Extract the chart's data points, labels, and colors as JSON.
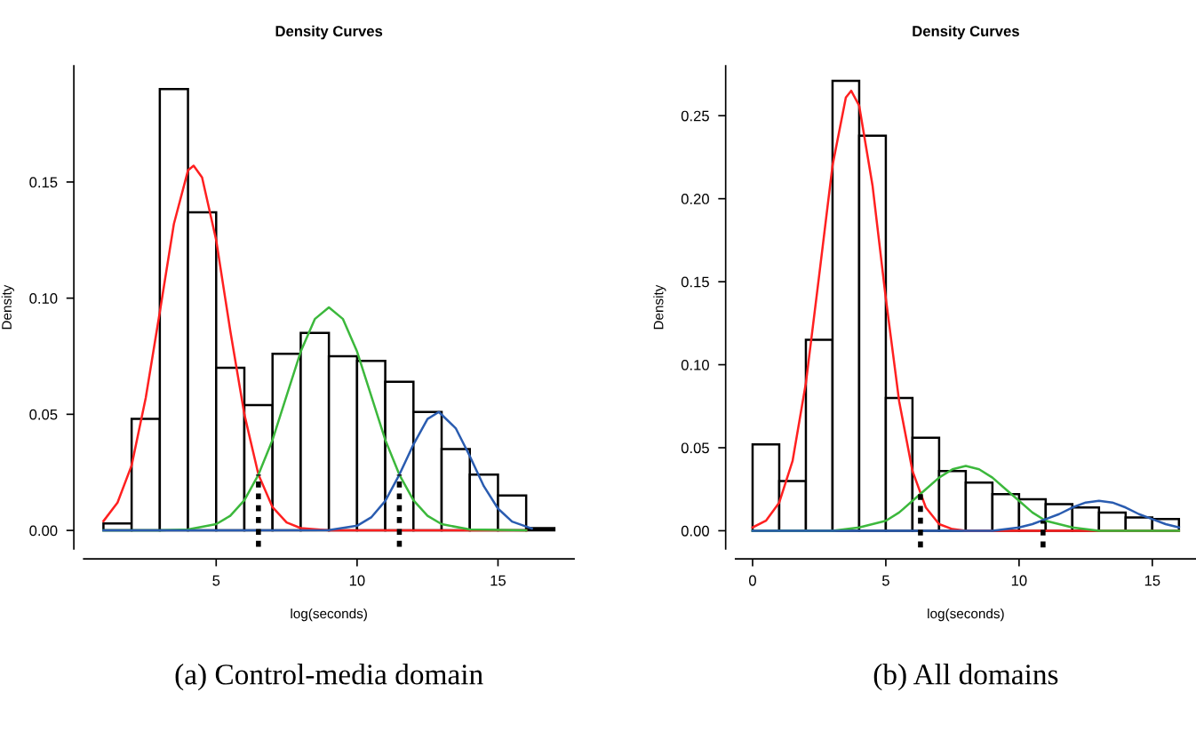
{
  "chart_data": [
    {
      "type": "histogram",
      "title": "Density Curves",
      "xlabel": "log(seconds)",
      "ylabel": "Density",
      "color": "#ffffff",
      "bins": [
        1,
        2,
        3,
        4,
        5,
        6,
        7,
        8,
        9,
        10,
        11,
        12,
        13,
        14,
        15,
        16,
        17
      ],
      "values": [
        0.003,
        0.048,
        0.19,
        0.137,
        0.07,
        0.054,
        0.076,
        0.085,
        0.075,
        0.073,
        0.064,
        0.051,
        0.035,
        0.024,
        0.015,
        0.001
      ],
      "series": [
        {
          "type": "line",
          "color": "#ff2020",
          "x": [
            1,
            1.5,
            2,
            2.5,
            3,
            3.5,
            4,
            4.2,
            4.5,
            5,
            5.5,
            6,
            6.5,
            7,
            7.5,
            8,
            9,
            16
          ],
          "values": [
            0.004,
            0.012,
            0.028,
            0.057,
            0.094,
            0.132,
            0.155,
            0.157,
            0.152,
            0.125,
            0.086,
            0.05,
            0.024,
            0.01,
            0.0034,
            0.001,
            0,
            0
          ]
        },
        {
          "type": "line",
          "color": "#3cb83c",
          "x": [
            1,
            3,
            4,
            5,
            5.5,
            6,
            6.5,
            7,
            7.5,
            8,
            8.5,
            9,
            9.5,
            10,
            10.5,
            11,
            11.5,
            12,
            12.5,
            13,
            14,
            16
          ],
          "values": [
            0,
            0,
            0.0004,
            0.0027,
            0.0063,
            0.013,
            0.024,
            0.039,
            0.058,
            0.077,
            0.091,
            0.096,
            0.091,
            0.077,
            0.058,
            0.039,
            0.024,
            0.013,
            0.0063,
            0.0027,
            0.0004,
            0
          ]
        },
        {
          "type": "line",
          "color": "#2a5cb0",
          "x": [
            1,
            9,
            10,
            10.5,
            11,
            11.5,
            12,
            12.5,
            12.9,
            13.5,
            14,
            14.5,
            15,
            15.5,
            16.2
          ],
          "values": [
            0,
            0.0001,
            0.002,
            0.0056,
            0.0127,
            0.024,
            0.037,
            0.048,
            0.051,
            0.044,
            0.032,
            0.019,
            0.0094,
            0.0038,
            0.0008
          ]
        },
        {
          "type": "line",
          "color": "#000000",
          "line_style": "dotted",
          "x": [
            6.5,
            6.5
          ],
          "values": [
            -0.007,
            0.024
          ]
        },
        {
          "type": "line",
          "color": "#000000",
          "line_style": "dotted",
          "x": [
            11.5,
            11.5
          ],
          "values": [
            -0.007,
            0.024
          ]
        }
      ],
      "xlim": [
        0.3,
        17.7
      ],
      "ylim": [
        -0.008,
        0.2
      ],
      "xticks": [
        5,
        10,
        15
      ],
      "yticks": [
        {
          "value": 0,
          "label": "0.00"
        },
        {
          "value": 0.05,
          "label": "0.05"
        },
        {
          "value": 0.1,
          "label": "0.10"
        },
        {
          "value": 0.15,
          "label": "0.15"
        }
      ],
      "annotations": [
        "(a) Control-media domain"
      ]
    },
    {
      "type": "histogram",
      "title": "Density Curves",
      "xlabel": "log(seconds)",
      "ylabel": "Density",
      "color": "#ffffff",
      "bins": [
        0,
        1,
        2,
        3,
        4,
        5,
        6,
        7,
        8,
        9,
        10,
        11,
        12,
        13,
        14,
        15,
        16
      ],
      "values": [
        0.052,
        0.03,
        0.115,
        0.271,
        0.238,
        0.08,
        0.056,
        0.036,
        0.029,
        0.022,
        0.019,
        0.016,
        0.014,
        0.011,
        0.008,
        0.007
      ],
      "series": [
        {
          "type": "line",
          "color": "#ff2020",
          "x": [
            0,
            0.5,
            1,
            1.5,
            2,
            2.5,
            3,
            3.5,
            3.7,
            4,
            4.5,
            5,
            5.5,
            6,
            6.5,
            7,
            7.5,
            8,
            9,
            16
          ],
          "values": [
            0.002,
            0.006,
            0.017,
            0.042,
            0.089,
            0.154,
            0.22,
            0.261,
            0.265,
            0.256,
            0.208,
            0.14,
            0.078,
            0.036,
            0.014,
            0.004,
            0.001,
            0,
            0,
            0
          ]
        },
        {
          "type": "line",
          "color": "#3cb83c",
          "x": [
            0,
            2,
            3,
            4,
            5,
            5.5,
            6,
            6.5,
            7,
            7.5,
            8,
            8.5,
            9,
            9.5,
            10,
            10.5,
            11,
            12,
            13,
            14,
            16
          ],
          "values": [
            0,
            0,
            0,
            0.002,
            0.006,
            0.011,
            0.018,
            0.025,
            0.032,
            0.037,
            0.039,
            0.037,
            0.032,
            0.025,
            0.018,
            0.011,
            0.006,
            0.002,
            0,
            0,
            0
          ]
        },
        {
          "type": "line",
          "color": "#2a5cb0",
          "x": [
            0,
            8,
            9,
            10,
            10.5,
            11,
            11.5,
            12,
            12.5,
            13,
            13.5,
            14,
            14.5,
            15,
            15.5,
            16
          ],
          "values": [
            0,
            0,
            0,
            0.002,
            0.004,
            0.007,
            0.01,
            0.014,
            0.017,
            0.018,
            0.017,
            0.014,
            0.01,
            0.007,
            0.004,
            0.002
          ]
        },
        {
          "type": "line",
          "color": "#000000",
          "line_style": "dotted",
          "x": [
            6.3,
            6.3
          ],
          "values": [
            -0.01,
            0.022
          ]
        },
        {
          "type": "line",
          "color": "#000000",
          "line_style": "dotted",
          "x": [
            10.9,
            10.9
          ],
          "values": [
            -0.01,
            0.006
          ]
        }
      ],
      "xlim": [
        -0.64,
        16.64
      ],
      "ylim": [
        -0.011,
        0.28
      ],
      "xticks": [
        0,
        5,
        10,
        15
      ],
      "yticks": [
        {
          "value": 0,
          "label": "0.00"
        },
        {
          "value": 0.05,
          "label": "0.05"
        },
        {
          "value": 0.1,
          "label": "0.10"
        },
        {
          "value": 0.15,
          "label": "0.15"
        },
        {
          "value": 0.2,
          "label": "0.20"
        },
        {
          "value": 0.25,
          "label": "0.25"
        }
      ],
      "annotations": [
        "(b) All domains"
      ]
    }
  ]
}
